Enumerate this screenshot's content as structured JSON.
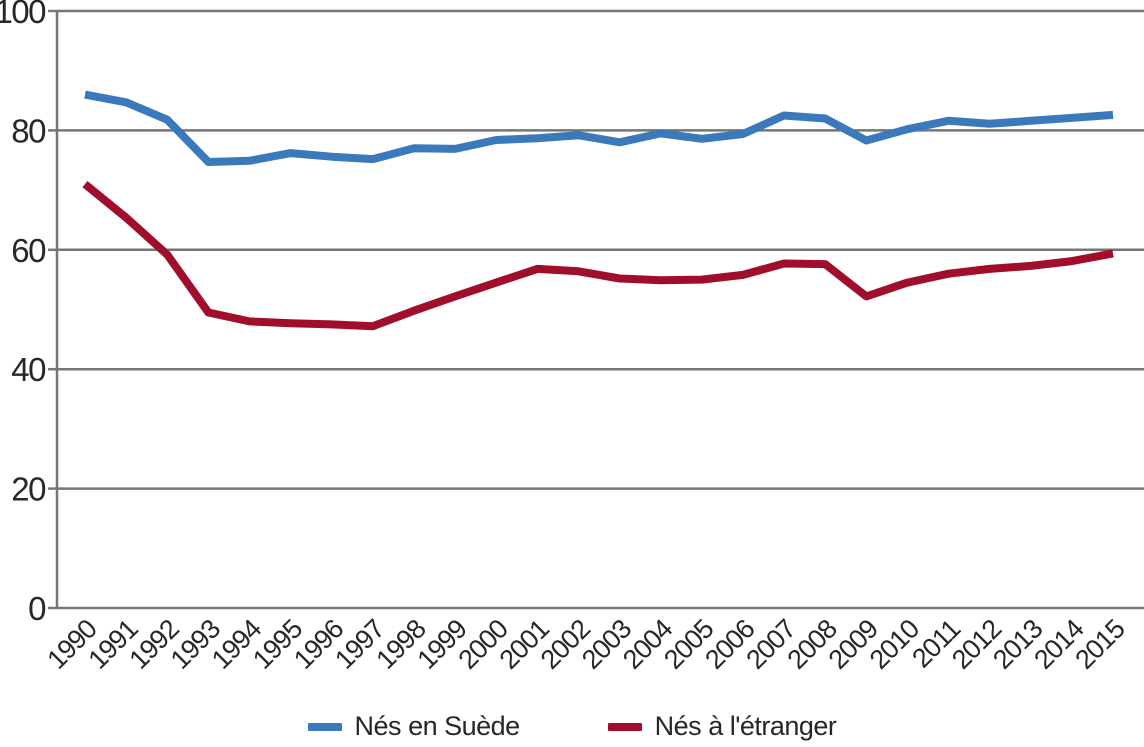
{
  "chart_data": {
    "type": "line",
    "title": "",
    "xlabel": "",
    "ylabel": "",
    "ylim": [
      0,
      100
    ],
    "yticks": [
      0,
      20,
      40,
      60,
      80,
      100
    ],
    "grid": "horizontal",
    "legend_position": "bottom",
    "axis_color": "#767676",
    "text_color": "#26262b",
    "categories": [
      "1990",
      "1991",
      "1992",
      "1993",
      "1994",
      "1995",
      "1996",
      "1997",
      "1998",
      "1999",
      "2000",
      "2001",
      "2002",
      "2003",
      "2004",
      "2005",
      "2006",
      "2007",
      "2008",
      "2009",
      "2010",
      "2011",
      "2012",
      "2013",
      "2014",
      "2015"
    ],
    "series": [
      {
        "name": "Nés en Suède",
        "color": "#3B79BC",
        "values": [
          86,
          84.7,
          81.8,
          74.7,
          74.9,
          76.2,
          75.6,
          75.2,
          77,
          76.9,
          78.4,
          78.7,
          79.2,
          78,
          79.5,
          78.6,
          79.4,
          82.5,
          82,
          78.3,
          80.2,
          81.6,
          81.1,
          81.6,
          82.1,
          82.6
        ]
      },
      {
        "name": "Nés à l'étranger",
        "color": "#A00E2C",
        "values": [
          71,
          65.4,
          59.2,
          49.5,
          48,
          47.7,
          47.5,
          47.2,
          49.8,
          52.2,
          54.5,
          56.8,
          56.4,
          55.2,
          54.9,
          55,
          55.8,
          57.7,
          57.6,
          52.2,
          54.5,
          56,
          56.8,
          57.3,
          58.1,
          59.4
        ]
      }
    ]
  }
}
